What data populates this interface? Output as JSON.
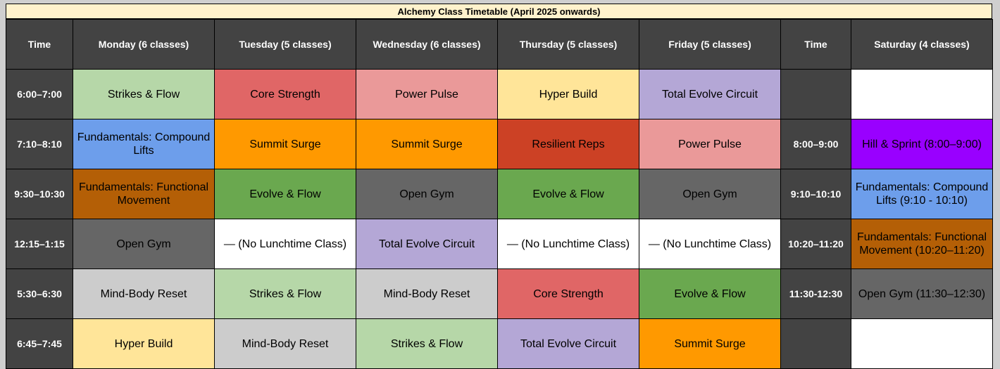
{
  "title": "Alchemy Class Timetable (April 2025 onwards)",
  "headers": [
    "Time",
    "Monday (6 classes)",
    "Tuesday (5 classes)",
    "Wednesday (6 classes)",
    "Thursday (5 classes)",
    "Friday (5 classes)",
    "Time",
    "Saturday (4 classes)"
  ],
  "rows": [
    {
      "time": "6:00–7:00",
      "cells": [
        {
          "text": "Strikes & Flow",
          "color": "#b6d7a8"
        },
        {
          "text": "Core Strength",
          "color": "#e06666"
        },
        {
          "text": "Power Pulse",
          "color": "#ea9999"
        },
        {
          "text": "Hyper Build",
          "color": "#ffe599"
        },
        {
          "text": "Total Evolve Circuit",
          "color": "#b4a7d6"
        }
      ],
      "sat_time": "",
      "sat": {
        "text": "",
        "color": "#ffffff"
      }
    },
    {
      "time": "7:10–8:10",
      "cells": [
        {
          "text": "Fundamentals: Compound Lifts",
          "color": "#6d9eeb"
        },
        {
          "text": "Summit Surge",
          "color": "#ff9900"
        },
        {
          "text": "Summit Surge",
          "color": "#ff9900"
        },
        {
          "text": "Resilient Reps",
          "color": "#cc4125"
        },
        {
          "text": "Power Pulse",
          "color": "#ea9999"
        }
      ],
      "sat_time": "8:00–9:00",
      "sat": {
        "text": "Hill & Sprint (8:00–9:00)",
        "color": "#9900ff"
      }
    },
    {
      "time": "9:30–10:30",
      "cells": [
        {
          "text": "Fundamentals: Functional Movement",
          "color": "#b45f06"
        },
        {
          "text": "Evolve & Flow",
          "color": "#6aa84f"
        },
        {
          "text": "Open Gym",
          "color": "#666666"
        },
        {
          "text": "Evolve & Flow",
          "color": "#6aa84f"
        },
        {
          "text": "Open Gym",
          "color": "#666666"
        }
      ],
      "sat_time": "9:10–10:10",
      "sat": {
        "text": "Fundamentals: Compound Lifts (9:10 - 10:10)",
        "color": "#6d9eeb"
      }
    },
    {
      "time": "12:15–1:15",
      "cells": [
        {
          "text": "Open Gym",
          "color": "#666666"
        },
        {
          "text": "— (No Lunchtime Class)",
          "color": "#ffffff"
        },
        {
          "text": "Total Evolve Circuit",
          "color": "#b4a7d6"
        },
        {
          "text": "— (No Lunchtime Class)",
          "color": "#ffffff"
        },
        {
          "text": "— (No Lunchtime Class)",
          "color": "#ffffff"
        }
      ],
      "sat_time": "10:20–11:20",
      "sat": {
        "text": "Fundamentals: Functional Movement (10:20–11:20)",
        "color": "#b45f06"
      }
    },
    {
      "time": "5:30–6:30",
      "cells": [
        {
          "text": "Mind-Body Reset",
          "color": "#cccccc"
        },
        {
          "text": "Strikes & Flow",
          "color": "#b6d7a8"
        },
        {
          "text": "Mind-Body Reset",
          "color": "#cccccc"
        },
        {
          "text": "Core Strength",
          "color": "#e06666"
        },
        {
          "text": "Evolve & Flow",
          "color": "#6aa84f"
        }
      ],
      "sat_time": "11:30-12:30",
      "sat": {
        "text": "Open Gym (11:30–12:30)",
        "color": "#666666"
      }
    },
    {
      "time": "6:45–7:45",
      "cells": [
        {
          "text": "Hyper Build",
          "color": "#ffe599"
        },
        {
          "text": "Mind-Body Reset",
          "color": "#cccccc"
        },
        {
          "text": "Strikes & Flow",
          "color": "#b6d7a8"
        },
        {
          "text": "Total Evolve Circuit",
          "color": "#b4a7d6"
        },
        {
          "text": "Summit Surge",
          "color": "#ff9900"
        }
      ],
      "sat_time": "",
      "sat": {
        "text": "",
        "color": "#ffffff"
      }
    }
  ]
}
